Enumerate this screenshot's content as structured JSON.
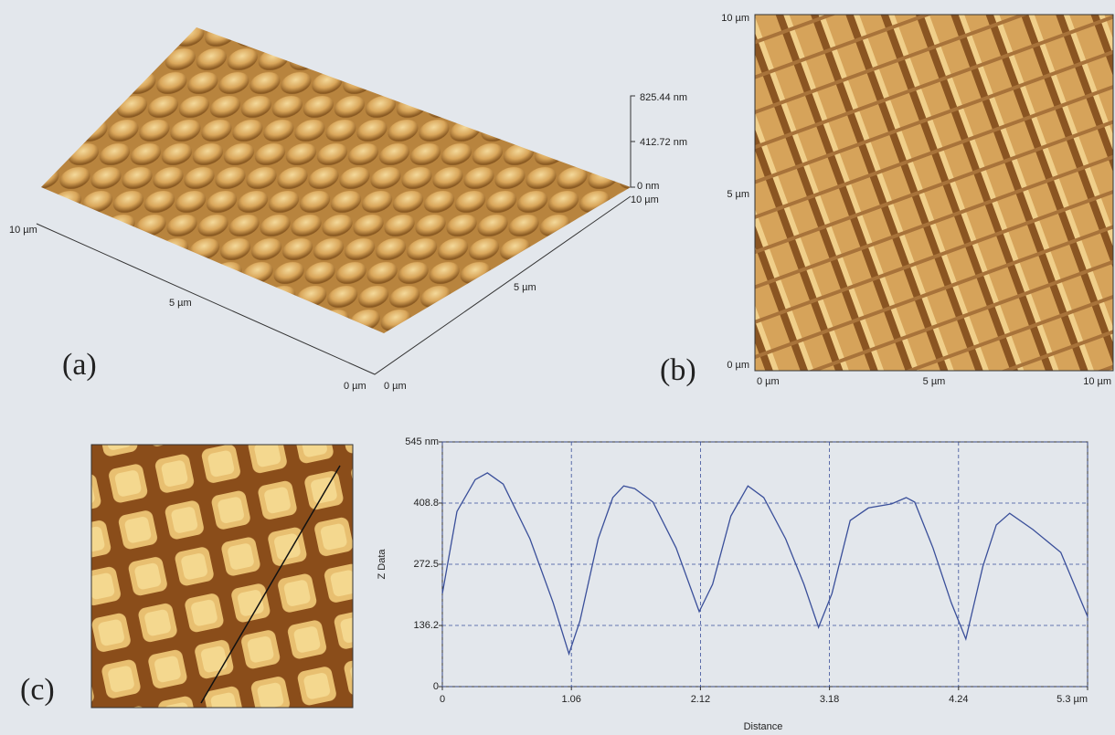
{
  "panels": {
    "a": {
      "label": "(a)",
      "z_ticks": [
        "825.44 nm",
        "412.72 nm",
        "0 nm"
      ],
      "axis_labels": [
        "10 µm",
        "5 µm",
        "0 µm",
        "0 µm",
        "5 µm",
        "10 µm"
      ]
    },
    "b": {
      "label": "(b)",
      "y_ticks": [
        "10 µm",
        "5 µm",
        "0 µm"
      ],
      "x_ticks": [
        "0 µm",
        "5 µm",
        "10 µm"
      ]
    },
    "c": {
      "label": "(c)"
    }
  },
  "chart_data": {
    "type": "line",
    "xlabel": "Distance",
    "ylabel": "Z Data",
    "x": [
      0,
      0.12,
      0.27,
      0.37,
      0.5,
      0.72,
      0.91,
      1.04,
      1.13,
      1.28,
      1.4,
      1.49,
      1.58,
      1.73,
      1.92,
      2.11,
      2.22,
      2.37,
      2.51,
      2.64,
      2.82,
      2.97,
      3.09,
      3.2,
      3.35,
      3.5,
      3.69,
      3.81,
      3.88,
      4.03,
      4.18,
      4.3,
      4.44,
      4.55,
      4.66,
      4.85,
      5.08,
      5.3
    ],
    "series": [
      {
        "color": "#3a4f9a",
        "values": [
          207,
          390,
          461,
          476,
          451,
          329,
          187,
          73,
          146,
          329,
          421,
          447,
          441,
          411,
          309,
          167,
          228,
          380,
          447,
          421,
          329,
          228,
          132,
          207,
          370,
          398,
          407,
          421,
          411,
          309,
          187,
          106,
          268,
          360,
          386,
          350,
          299,
          156
        ]
      }
    ],
    "xlim": [
      0,
      5.3
    ],
    "ylim": [
      0,
      545
    ],
    "xticks": [
      0,
      1.06,
      2.12,
      3.18,
      4.24,
      {
        "value": 5.3,
        "label": "5.3 µm"
      }
    ],
    "yticks": [
      0,
      136.2,
      272.5,
      408.8,
      {
        "value": 545,
        "label": "545 nm"
      }
    ],
    "grid": true
  }
}
